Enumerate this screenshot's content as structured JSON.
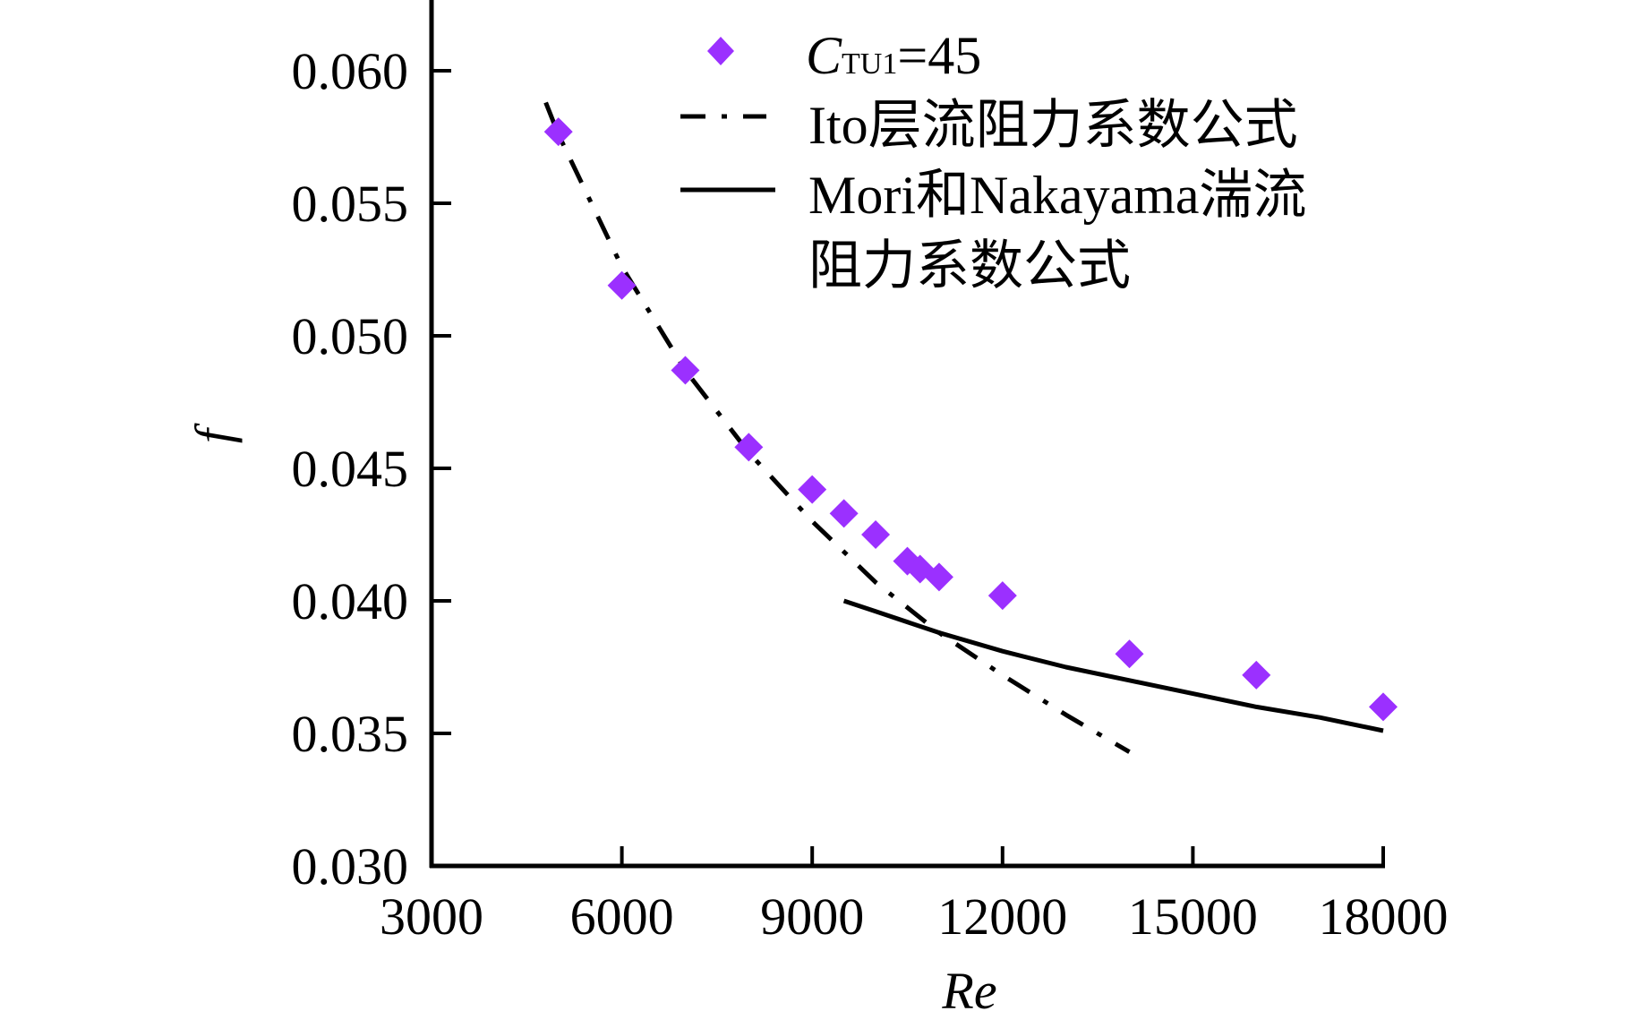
{
  "chart_data": {
    "type": "scatter",
    "title": "",
    "xlabel": "Re",
    "ylabel": "f",
    "xlim": [
      3000,
      18000
    ],
    "ylim": [
      0.03,
      0.062
    ],
    "x_ticks": [
      3000,
      6000,
      9000,
      12000,
      15000,
      18000
    ],
    "x_tick_labels": [
      "3000",
      "6000",
      "9000",
      "12000",
      "15000",
      "18000"
    ],
    "y_ticks": [
      0.03,
      0.035,
      0.04,
      0.045,
      0.05,
      0.055,
      0.06
    ],
    "y_tick_labels": [
      "0.030",
      "0.035",
      "0.040",
      "0.045",
      "0.050",
      "0.055",
      "0.060"
    ],
    "grid": false,
    "legend_position": "top-right",
    "series": [
      {
        "name": "CTU1=45",
        "legend_main": "C",
        "legend_sub": "TU1",
        "legend_rest": "=45",
        "kind": "scatter",
        "marker": "diamond",
        "color": "#9B30FF",
        "x": [
          5000,
          6000,
          7000,
          8000,
          9000,
          9500,
          10000,
          10500,
          10700,
          11000,
          12000,
          14000,
          16000,
          18000
        ],
        "y": [
          0.0577,
          0.0519,
          0.0487,
          0.0458,
          0.0442,
          0.0433,
          0.0425,
          0.0415,
          0.0412,
          0.0409,
          0.0402,
          0.038,
          0.0372,
          0.036
        ]
      },
      {
        "name": "Ito层流阻力系数公式",
        "legend_lines": [
          "Ito层流阻力系数公式"
        ],
        "kind": "line",
        "style": "dash-dot",
        "color": "#000000",
        "x": [
          4800,
          5000,
          6000,
          7000,
          8000,
          9000,
          10000,
          11000,
          12000,
          13000,
          14000
        ],
        "y": [
          0.0588,
          0.0576,
          0.0526,
          0.0487,
          0.0456,
          0.043,
          0.0407,
          0.0388,
          0.0372,
          0.0357,
          0.0343
        ]
      },
      {
        "name": "Mori和Nakayama湍流阻力系数公式",
        "legend_lines": [
          "Mori和Nakayama湍流",
          "阻力系数公式"
        ],
        "kind": "line",
        "style": "solid",
        "color": "#000000",
        "x": [
          9500,
          10000,
          11000,
          12000,
          13000,
          14000,
          15000,
          16000,
          17000,
          18000
        ],
        "y": [
          0.04,
          0.0396,
          0.0388,
          0.0381,
          0.0375,
          0.037,
          0.0365,
          0.036,
          0.0356,
          0.0351
        ]
      }
    ]
  }
}
